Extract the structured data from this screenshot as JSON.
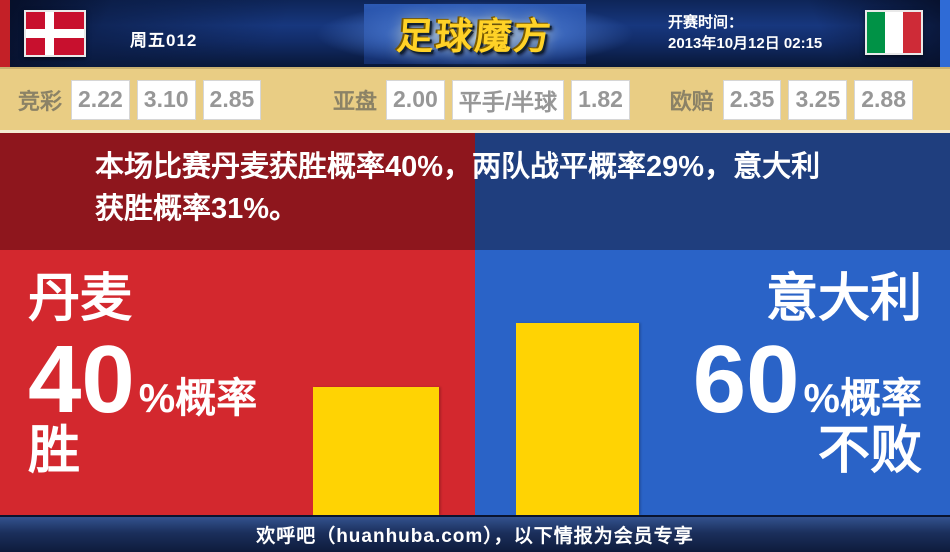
{
  "header": {
    "match_code": "周五012",
    "logo_text": "足球魔方",
    "kickoff_label": "开赛时间：",
    "kickoff_time": "2013年10月12日 02:15",
    "home_flag": "denmark",
    "away_flag": "italy"
  },
  "odds_bar": {
    "groups": [
      {
        "label": "竞彩",
        "values": [
          "2.22",
          "3.10",
          "2.85"
        ]
      },
      {
        "label": "亚盘",
        "values": [
          "2.00",
          "平手/半球",
          "1.82"
        ]
      },
      {
        "label": "欧赔",
        "values": [
          "2.35",
          "3.25",
          "2.88"
        ]
      }
    ]
  },
  "summary": {
    "lines": [
      "本场比赛丹麦获胜概率40%，两队战平概率29%，意大利",
      "获胜概率31%。"
    ]
  },
  "panels": {
    "home": {
      "name": "丹麦",
      "probability": "40",
      "prob_suffix": "%概率",
      "outcome": "胜",
      "bar_percent": 40
    },
    "away": {
      "name": "意大利",
      "probability": "60",
      "prob_suffix": "%概率",
      "outcome": "不败",
      "bar_percent": 60
    }
  },
  "footer": {
    "text": "欢呼吧（huanhuba.com），以下情报为会员专享"
  },
  "colors": {
    "bright_red": "#d3282e",
    "bright_blue": "#2a63c7",
    "dark_red": "#8e161d",
    "dark_navy": "#1f3e7e",
    "bar_yellow": "#ffd303",
    "odds_tan": "#e9cd84",
    "logo_gold": "#ffd227",
    "left_stripe_red": "#c32027",
    "right_stripe_blue": "#2f6bd6"
  }
}
